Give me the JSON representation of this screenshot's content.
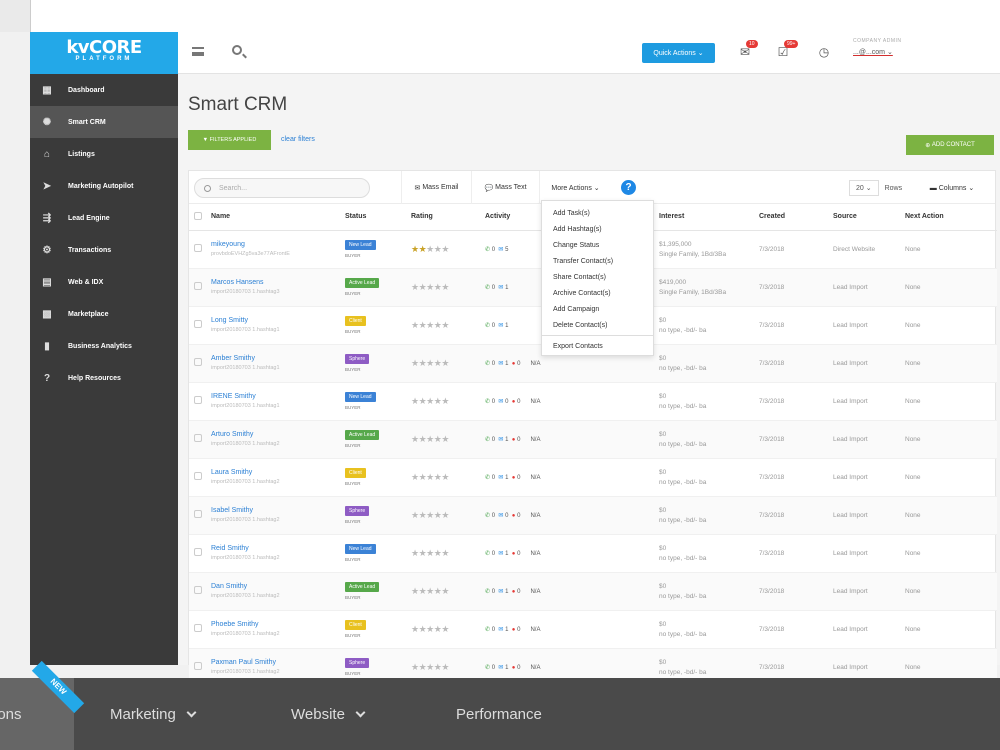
{
  "window": {
    "dot_colors": [
      "#ef4a3c",
      "#f6b324",
      "#40c03c"
    ]
  },
  "sidebar": {
    "logo_main": "kvCORE",
    "logo_sub": "PLATFORM",
    "items": [
      {
        "label": "Dashboard",
        "icon": "dashboard-icon",
        "glyph": "▦"
      },
      {
        "label": "Smart CRM",
        "icon": "crm-icon",
        "glyph": "✺"
      },
      {
        "label": "Listings",
        "icon": "house-icon",
        "glyph": "⌂"
      },
      {
        "label": "Marketing Autopilot",
        "icon": "paper-plane-icon",
        "glyph": "➤"
      },
      {
        "label": "Lead Engine",
        "icon": "lead-engine-icon",
        "glyph": "⇶"
      },
      {
        "label": "Transactions",
        "icon": "transactions-icon",
        "glyph": "⚙"
      },
      {
        "label": "Web & IDX",
        "icon": "web-idx-icon",
        "glyph": "▤"
      },
      {
        "label": "Marketplace",
        "icon": "marketplace-icon",
        "glyph": "▩"
      },
      {
        "label": "Business Analytics",
        "icon": "analytics-icon",
        "glyph": "▮"
      },
      {
        "label": "Help Resources",
        "icon": "help-icon",
        "glyph": "?"
      }
    ]
  },
  "header": {
    "quick_actions": "Quick Actions ⌄",
    "email_badge": "10",
    "tasks_badge": "99+",
    "company": "COMPANY ADMIN",
    "email": "...@...com"
  },
  "main": {
    "title": "Smart CRM",
    "filters_applied": "FILTERS APPLIED",
    "clear_filters": "clear filters",
    "add_contact": "ADD CONTACT",
    "search_placeholder": "Search...",
    "mass_email": "Mass Email",
    "mass_text": "Mass Text",
    "more_actions": "More Actions ⌄",
    "rows_value": "20 ⌄",
    "rows_label": "Rows",
    "columns": "Columns ⌄",
    "columns_header": [
      "Name",
      "Status",
      "Rating",
      "Activity",
      "Interest",
      "Created",
      "Source",
      "Next Action"
    ],
    "dropdown": [
      "Add Task(s)",
      "Add Hashtag(s)",
      "Change Status",
      "Transfer Contact(s)",
      "Share Contact(s)",
      "Archive Contact(s)",
      "Add Campaign",
      "Delete Contact(s)",
      "Export Contacts"
    ],
    "rows": [
      {
        "name": "mikeyoung",
        "sub": "provbdoEVHZg5va3e77AFrontE",
        "status": "New Lead",
        "status_color": "#3b82d6",
        "type": "BUYER",
        "rating": 2,
        "act": [
          "0",
          "5",
          ""
        ],
        "nxt": "",
        "int1": "$1,395,000",
        "int2": "Single Family, 1Bd/3Ba",
        "created": "7/3/2018",
        "source": "Direct Website",
        "next": "None"
      },
      {
        "name": "Marcos Hansens",
        "sub": "import20180703 1.hashtag3",
        "status": "Active Lead",
        "status_color": "#56a84a",
        "type": "BUYER",
        "rating": 0,
        "act": [
          "0",
          "1",
          ""
        ],
        "nxt": "",
        "int1": "$419,000",
        "int2": "Single Family, 1Bd/3Ba",
        "created": "7/3/2018",
        "source": "Lead Import",
        "next": "None"
      },
      {
        "name": "Long Smitty",
        "sub": "import20180703 1.hashtag1",
        "status": "Client",
        "status_color": "#e8c11f",
        "type": "BUYER",
        "rating": 0,
        "act": [
          "0",
          "1",
          ""
        ],
        "nxt": "",
        "int1": "$0",
        "int2": "no type, -bd/- ba",
        "created": "7/3/2018",
        "source": "Lead Import",
        "next": "None"
      },
      {
        "name": "Amber Smithy",
        "sub": "import20180703 1.hashtag1",
        "status": "Sphere",
        "status_color": "#8e5cc4",
        "type": "BUYER",
        "rating": 0,
        "act": [
          "0",
          "1",
          "0"
        ],
        "nxt": "N/A",
        "int1": "$0",
        "int2": "no type, -bd/- ba",
        "created": "7/3/2018",
        "source": "Lead Import",
        "next": "None"
      },
      {
        "name": "IRENE Smithy",
        "sub": "import20180703 1.hashtag1",
        "status": "New Lead",
        "status_color": "#3b82d6",
        "type": "BUYER",
        "rating": 0,
        "act": [
          "0",
          "0",
          "0"
        ],
        "nxt": "N/A",
        "int1": "$0",
        "int2": "no type, -bd/- ba",
        "created": "7/3/2018",
        "source": "Lead Import",
        "next": "None"
      },
      {
        "name": "Arturo Smithy",
        "sub": "import20180703 1.hashtag2",
        "status": "Active Lead",
        "status_color": "#56a84a",
        "type": "BUYER",
        "rating": 0,
        "act": [
          "0",
          "1",
          "0"
        ],
        "nxt": "N/A",
        "int1": "$0",
        "int2": "no type, -bd/- ba",
        "created": "7/3/2018",
        "source": "Lead Import",
        "next": "None"
      },
      {
        "name": "Laura Smithy",
        "sub": "import20180703 1.hashtag2",
        "status": "Client",
        "status_color": "#e8c11f",
        "type": "BUYER",
        "rating": 0,
        "act": [
          "0",
          "1",
          "0"
        ],
        "nxt": "N/A",
        "int1": "$0",
        "int2": "no type, -bd/- ba",
        "created": "7/3/2018",
        "source": "Lead Import",
        "next": "None"
      },
      {
        "name": "Isabel Smithy",
        "sub": "import20180703 1.hashtag2",
        "status": "Sphere",
        "status_color": "#8e5cc4",
        "type": "BUYER",
        "rating": 0,
        "act": [
          "0",
          "0",
          "0"
        ],
        "nxt": "N/A",
        "int1": "$0",
        "int2": "no type, -bd/- ba",
        "created": "7/3/2018",
        "source": "Lead Import",
        "next": "None"
      },
      {
        "name": "Reid Smithy",
        "sub": "import20180703 1.hashtag2",
        "status": "New Lead",
        "status_color": "#3b82d6",
        "type": "BUYER",
        "rating": 0,
        "act": [
          "0",
          "1",
          "0"
        ],
        "nxt": "N/A",
        "int1": "$0",
        "int2": "no type, -bd/- ba",
        "created": "7/3/2018",
        "source": "Lead Import",
        "next": "None"
      },
      {
        "name": "Dan Smithy",
        "sub": "import20180703 1.hashtag2",
        "status": "Active Lead",
        "status_color": "#56a84a",
        "type": "BUYER",
        "rating": 0,
        "act": [
          "0",
          "1",
          "0"
        ],
        "nxt": "N/A",
        "int1": "$0",
        "int2": "no type, -bd/- ba",
        "created": "7/3/2018",
        "source": "Lead Import",
        "next": "None"
      },
      {
        "name": "Phoebe Smithy",
        "sub": "import20180703 1.hashtag2",
        "status": "Client",
        "status_color": "#e8c11f",
        "type": "BUYER",
        "rating": 0,
        "act": [
          "0",
          "1",
          "0"
        ],
        "nxt": "N/A",
        "int1": "$0",
        "int2": "no type, -bd/- ba",
        "created": "7/3/2018",
        "source": "Lead Import",
        "next": "None"
      },
      {
        "name": "Paxman Paul Smithy",
        "sub": "import20180703 1.hashtag2",
        "status": "Sphere",
        "status_color": "#8e5cc4",
        "type": "BUYER",
        "rating": 0,
        "act": [
          "0",
          "1",
          "0"
        ],
        "nxt": "N/A",
        "int1": "$0",
        "int2": "no type, -bd/- ba",
        "created": "7/3/2018",
        "source": "Lead Import",
        "next": "None"
      }
    ]
  },
  "bottom_nav": {
    "ribbon": "NEW",
    "items": [
      {
        "label": "ions"
      },
      {
        "label": "Marketing"
      },
      {
        "label": "Website"
      },
      {
        "label": "Performance"
      }
    ]
  }
}
